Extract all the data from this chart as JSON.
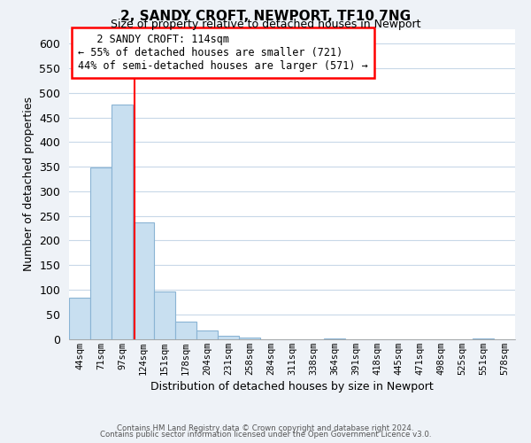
{
  "title": "2, SANDY CROFT, NEWPORT, TF10 7NG",
  "subtitle": "Size of property relative to detached houses in Newport",
  "xlabel": "Distribution of detached houses by size in Newport",
  "ylabel": "Number of detached properties",
  "bar_color": "#c8dff0",
  "bar_edge_color": "#8ab4d4",
  "categories": [
    "44sqm",
    "71sqm",
    "97sqm",
    "124sqm",
    "151sqm",
    "178sqm",
    "204sqm",
    "231sqm",
    "258sqm",
    "284sqm",
    "311sqm",
    "338sqm",
    "364sqm",
    "391sqm",
    "418sqm",
    "445sqm",
    "471sqm",
    "498sqm",
    "525sqm",
    "551sqm",
    "578sqm"
  ],
  "values": [
    83,
    348,
    476,
    237,
    97,
    35,
    18,
    7,
    2,
    0,
    0,
    0,
    1,
    0,
    0,
    0,
    0,
    0,
    0,
    1,
    0
  ],
  "ylim": [
    0,
    630
  ],
  "yticks": [
    0,
    50,
    100,
    150,
    200,
    250,
    300,
    350,
    400,
    450,
    500,
    550,
    600
  ],
  "vline_x_idx": 2.58,
  "annotation_title": "2 SANDY CROFT: 114sqm",
  "annotation_line1": "← 55% of detached houses are smaller (721)",
  "annotation_line2": "44% of semi-detached houses are larger (571) →",
  "footer_line1": "Contains HM Land Registry data © Crown copyright and database right 2024.",
  "footer_line2": "Contains public sector information licensed under the Open Government Licence v3.0.",
  "background_color": "#eef2f7",
  "plot_bg_color": "#ffffff",
  "grid_color": "#c8d8e8"
}
